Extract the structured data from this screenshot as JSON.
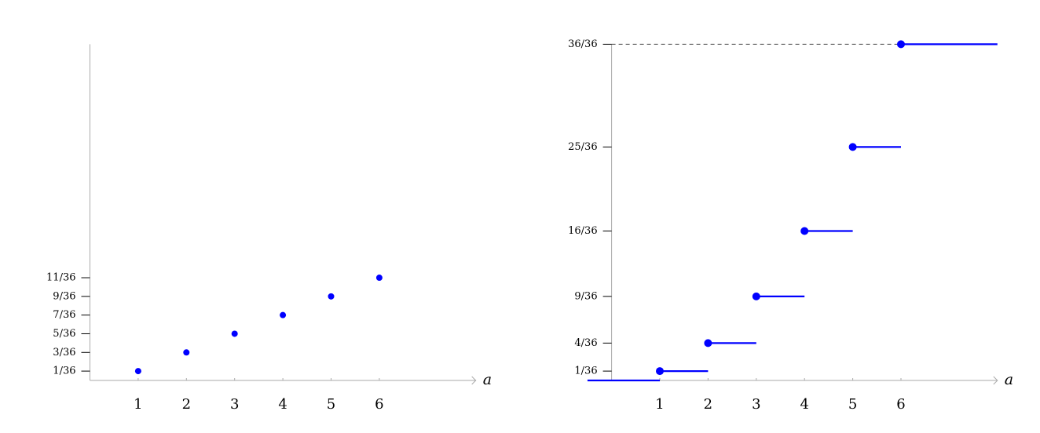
{
  "chart_data": [
    {
      "type": "scatter",
      "xlabel": "a",
      "x": [
        1,
        2,
        3,
        4,
        5,
        6
      ],
      "values": [
        0.027777777777777776,
        0.08333333333333333,
        0.1388888888888889,
        0.19444444444444445,
        0.25,
        0.3055555555555556
      ],
      "color": "#0000ff",
      "xlim": [
        0,
        8
      ],
      "ylim": [
        0,
        1
      ],
      "xticks": [
        1,
        2,
        3,
        4,
        5,
        6
      ],
      "yticks": [
        {
          "value": 0.027777777777777776,
          "label": "1/36"
        },
        {
          "value": 0.08333333333333333,
          "label": "3/36"
        },
        {
          "value": 0.1388888888888889,
          "label": "5/36"
        },
        {
          "value": 0.19444444444444445,
          "label": "7/36"
        },
        {
          "value": 0.25,
          "label": "9/36"
        },
        {
          "value": 0.3055555555555556,
          "label": "11/36"
        }
      ]
    },
    {
      "type": "step",
      "xlabel": "a",
      "x": [
        1,
        2,
        3,
        4,
        5,
        6
      ],
      "values": [
        0.027777777777777776,
        0.1111111111111111,
        0.25,
        0.4444444444444444,
        0.6944444444444444,
        1
      ],
      "color": "#0000ff",
      "xlim": [
        -0.5,
        8
      ],
      "ylim": [
        0,
        1
      ],
      "xticks": [
        1,
        2,
        3,
        4,
        5,
        6
      ],
      "yticks": [
        {
          "value": 0.027777777777777776,
          "label": "1/36"
        },
        {
          "value": 0.1111111111111111,
          "label": "4/36"
        },
        {
          "value": 0.25,
          "label": "9/36"
        },
        {
          "value": 0.4444444444444444,
          "label": "16/36"
        },
        {
          "value": 0.6944444444444444,
          "label": "25/36"
        },
        {
          "value": 1,
          "label": "36/36"
        }
      ]
    }
  ]
}
